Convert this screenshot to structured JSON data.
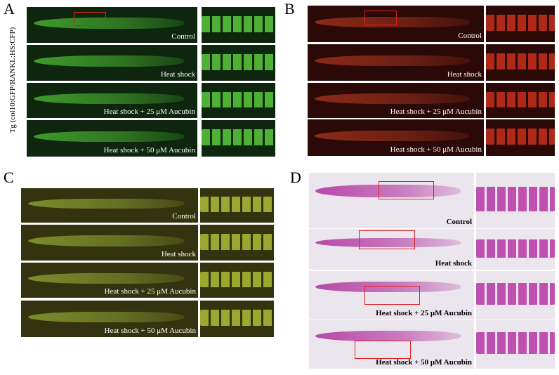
{
  "side_label": "Tg (col10:GFP/RANKL:HS:CFP)",
  "panels": [
    {
      "letter": "A",
      "rows": [
        "Control",
        "Heat shock",
        "Heat shock + 25 μM Aucubin",
        "Heat shock + 50 μM Aucubin"
      ]
    },
    {
      "letter": "B",
      "rows": [
        "Control",
        "Heat shock",
        "Heat shock + 25 μM Aucubin",
        "Heat shock + 50 μM Aucubin"
      ]
    },
    {
      "letter": "C",
      "rows": [
        "Control",
        "Heat shock",
        "Heat shock + 25 μM Aucubin",
        "Heat shock + 50 μM Aucubin"
      ]
    },
    {
      "letter": "D",
      "rows": [
        "Control",
        "Heat shock",
        "Heat shock + 25 μM Aucubin",
        "Heat shock + 50 μM Aucubin"
      ]
    }
  ]
}
